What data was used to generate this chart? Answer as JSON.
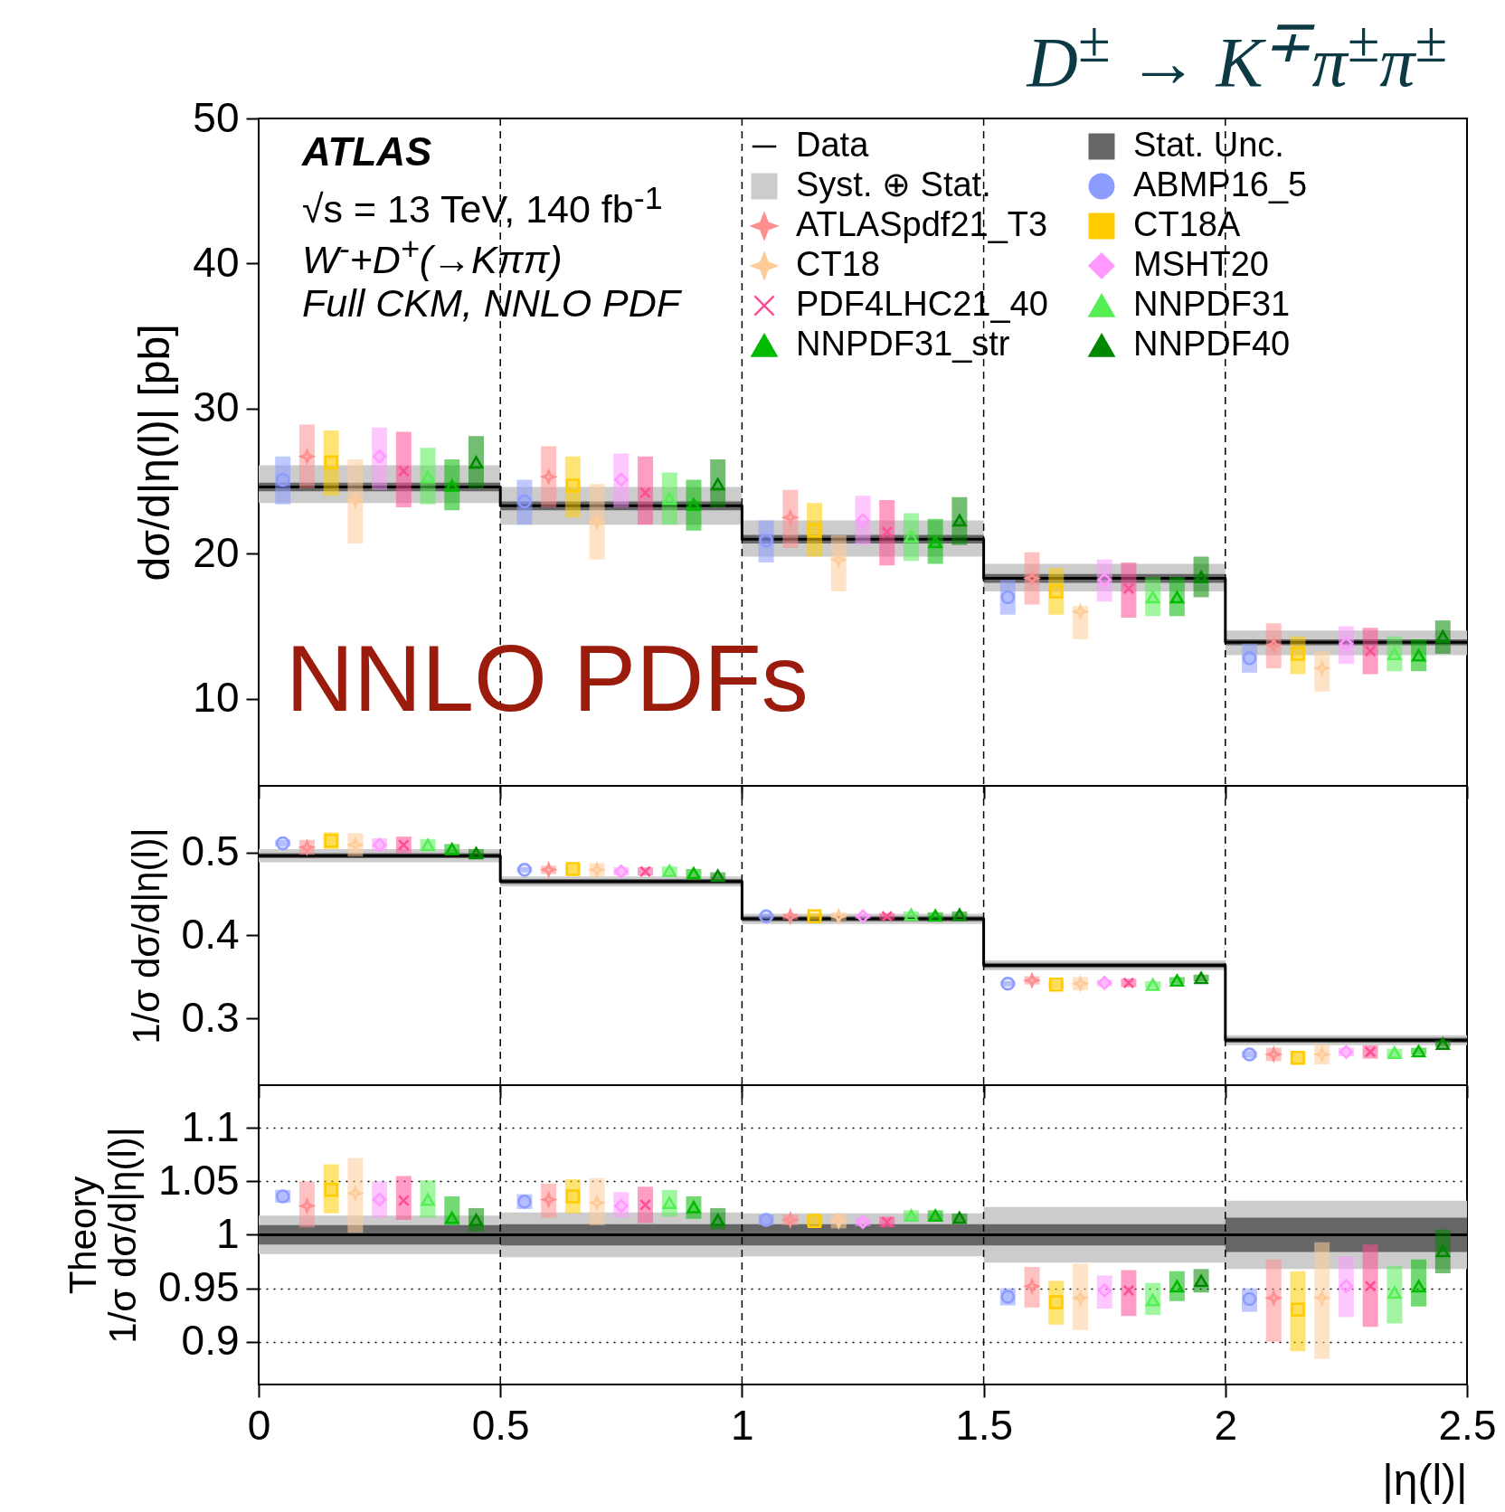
{
  "chart_data": [
    {
      "type": "scatter",
      "title": "D$^{±}$ → K$^{∓}$π$^{±}$π$^{±}$",
      "ylabel": "dσ/d|η(l)| [pb]",
      "xlim": [
        0,
        2.5
      ],
      "xticks": [
        0,
        0.5,
        1,
        1.5,
        2,
        2.5
      ],
      "ylim": [
        4,
        50
      ],
      "yticks": [
        10,
        20,
        30,
        40,
        50
      ],
      "tick_labels": "y",
      "legend": "top right",
      "annotations": [
        "ATLAS",
        "√s = 13 TeV, 140 fb$^{-1}$",
        "W$^{-}$+D$^{+}$(→Kππ)",
        "Full CKM, NNLO PDF",
        "NNLO PDFs"
      ],
      "ref_lines": [
        {
          "axis": "x",
          "value": 0.5,
          "line_style": "dashed"
        },
        {
          "axis": "x",
          "value": 1,
          "line_style": "dashed"
        },
        {
          "axis": "x",
          "value": 1.5,
          "line_style": "dashed"
        },
        {
          "axis": "x",
          "value": 2,
          "line_style": "dashed"
        }
      ],
      "series": [
        {
          "name": "Data",
          "type": "step",
          "color": "#000000",
          "marker": "none",
          "x": [
            0,
            0.5,
            1,
            1.5,
            2,
            2.5
          ],
          "values": [
            24.6,
            23.3,
            21.0,
            18.3,
            13.9,
            13.9
          ]
        },
        {
          "name": "Stat. Unc.",
          "type": "step",
          "color": "#666666",
          "x": [
            0,
            0.5,
            1,
            1.5,
            2,
            2.5
          ],
          "values": [
            null,
            null,
            null,
            null,
            null,
            null
          ],
          "lower": [
            24.3,
            23.0,
            20.7,
            18.0,
            13.7,
            13.7
          ],
          "upper": [
            24.9,
            23.6,
            21.3,
            18.6,
            14.1,
            14.1
          ]
        },
        {
          "name": "Syst. ⊕ Stat.",
          "type": "step",
          "color": "#cccccc",
          "x": [
            0,
            0.5,
            1,
            1.5,
            2,
            2.5
          ],
          "values": [
            null,
            null,
            null,
            null,
            null,
            null
          ],
          "lower": [
            23.5,
            22.0,
            19.8,
            17.4,
            13.0,
            13.0
          ],
          "upper": [
            26.1,
            24.6,
            22.3,
            19.3,
            14.7,
            14.7
          ]
        },
        {
          "name": "ABMP16_5",
          "color": "#8c9cff",
          "marker": "circle",
          "x": [
            0.05,
            0.55,
            1.05,
            1.55,
            2.05
          ],
          "values": [
            25.1,
            23.6,
            20.9,
            17.0,
            12.8
          ],
          "errors": [
            [
              23.4,
              26.7
            ],
            [
              22.0,
              25.1
            ],
            [
              19.4,
              22.3
            ],
            [
              15.8,
              18.2
            ],
            [
              11.8,
              13.8
            ]
          ]
        },
        {
          "name": "ATLASpdf21_T3",
          "color": "#ff8f8f",
          "marker": "star",
          "x": [
            0.1,
            0.6,
            1.1,
            1.6,
            2.1
          ],
          "values": [
            26.7,
            25.3,
            22.5,
            18.3,
            13.7
          ],
          "errors": [
            [
              24.5,
              28.9
            ],
            [
              23.2,
              27.4
            ],
            [
              20.4,
              24.4
            ],
            [
              16.5,
              20.1
            ],
            [
              12.1,
              15.2
            ]
          ]
        },
        {
          "name": "CT18A",
          "color": "#ffcc00",
          "marker": "square",
          "x": [
            0.15,
            0.65,
            1.15,
            1.65,
            2.15
          ],
          "values": [
            26.3,
            24.7,
            21.6,
            17.4,
            13.1
          ],
          "errors": [
            [
              24.0,
              28.5
            ],
            [
              22.5,
              26.7
            ],
            [
              19.8,
              23.5
            ],
            [
              15.8,
              19.0
            ],
            [
              11.7,
              14.3
            ]
          ]
        },
        {
          "name": "CT18",
          "color": "#ffcc99",
          "marker": "star",
          "x": [
            0.2,
            0.7,
            1.2,
            1.7,
            2.2
          ],
          "values": [
            23.7,
            22.2,
            19.6,
            16.0,
            12.1
          ],
          "errors": [
            [
              20.7,
              26.5
            ],
            [
              19.6,
              24.8
            ],
            [
              17.4,
              21.3
            ],
            [
              14.1,
              16.4
            ],
            [
              10.5,
              13.3
            ]
          ]
        },
        {
          "name": "MSHT20",
          "color": "#ff99ff",
          "marker": "diamond",
          "x": [
            0.25,
            0.75,
            1.25,
            1.75,
            2.25
          ],
          "values": [
            26.7,
            25.1,
            22.3,
            18.2,
            13.8
          ],
          "errors": [
            [
              24.4,
              28.7
            ],
            [
              23.2,
              26.9
            ],
            [
              20.6,
              24.0
            ],
            [
              16.7,
              19.6
            ],
            [
              12.4,
              15.0
            ]
          ]
        },
        {
          "name": "PDF4LHC21_40",
          "color": "#ff4d94",
          "marker": "cross",
          "x": [
            0.3,
            0.8,
            1.3,
            1.8,
            2.3
          ],
          "values": [
            25.7,
            24.2,
            21.5,
            17.6,
            13.3
          ],
          "errors": [
            [
              23.2,
              28.4
            ],
            [
              22.0,
              26.7
            ],
            [
              19.2,
              23.7
            ],
            [
              15.6,
              19.4
            ],
            [
              11.7,
              14.9
            ]
          ]
        },
        {
          "name": "NNPDF31",
          "color": "#55ee55",
          "marker": "triangle",
          "x": [
            0.35,
            0.85,
            1.35,
            1.85,
            2.35
          ],
          "values": [
            25.3,
            23.8,
            21.2,
            17.0,
            13.1
          ],
          "errors": [
            [
              23.4,
              27.3
            ],
            [
              22.0,
              25.6
            ],
            [
              19.5,
              22.8
            ],
            [
              15.7,
              18.4
            ],
            [
              11.9,
              14.3
            ]
          ]
        },
        {
          "name": "NNPDF31_str",
          "color": "#00bb00",
          "marker": "triangle",
          "x": [
            0.4,
            0.9,
            1.4,
            1.9,
            2.4
          ],
          "values": [
            24.7,
            23.4,
            20.8,
            17.0,
            13.0
          ],
          "errors": [
            [
              23.0,
              26.5
            ],
            [
              21.6,
              25.1
            ],
            [
              19.3,
              22.4
            ],
            [
              15.7,
              18.4
            ],
            [
              11.9,
              14.1
            ]
          ]
        },
        {
          "name": "NNPDF40",
          "color": "#008800",
          "marker": "triangle",
          "x": [
            0.45,
            0.95,
            1.45,
            1.95,
            2.45
          ],
          "values": [
            26.3,
            24.8,
            22.3,
            18.4,
            14.3
          ],
          "errors": [
            [
              24.5,
              28.1
            ],
            [
              23.2,
              26.5
            ],
            [
              20.6,
              23.9
            ],
            [
              17.0,
              19.8
            ],
            [
              13.1,
              15.4
            ]
          ]
        }
      ]
    },
    {
      "type": "scatter",
      "ylabel": "1/σ dσ/d|η(l)|",
      "xlim": [
        0,
        2.5
      ],
      "xticks": [
        0,
        0.5,
        1,
        1.5,
        2,
        2.5
      ],
      "ylim": [
        0.22,
        0.58
      ],
      "yticks": [
        0.3,
        0.4,
        0.5
      ],
      "tick_labels": "y",
      "ref_lines": [
        {
          "axis": "x",
          "value": 0.5,
          "line_style": "dashed"
        },
        {
          "axis": "x",
          "value": 1,
          "line_style": "dashed"
        },
        {
          "axis": "x",
          "value": 1.5,
          "line_style": "dashed"
        },
        {
          "axis": "x",
          "value": 2,
          "line_style": "dashed"
        }
      ],
      "series": [
        {
          "type": "step",
          "color": "#000000",
          "marker": "none",
          "x": [
            0,
            0.5,
            1,
            1.5,
            2,
            2.5
          ],
          "values": [
            0.496,
            0.465,
            0.42,
            0.364,
            0.274,
            0.274
          ]
        },
        {
          "type": "step",
          "color": "#666666",
          "x": [
            0,
            0.5,
            1,
            1.5,
            2,
            2.5
          ],
          "values": [
            null,
            null,
            null,
            null,
            null,
            null
          ],
          "lower": [
            0.493,
            0.462,
            0.417,
            0.361,
            0.271,
            0.271
          ],
          "upper": [
            0.499,
            0.468,
            0.423,
            0.367,
            0.277,
            0.277
          ]
        },
        {
          "type": "step",
          "color": "#cccccc",
          "x": [
            0,
            0.5,
            1,
            1.5,
            2,
            2.5
          ],
          "values": [
            null,
            null,
            null,
            null,
            null,
            null
          ],
          "lower": [
            0.488,
            0.459,
            0.414,
            0.358,
            0.268,
            0.268
          ],
          "upper": [
            0.504,
            0.471,
            0.426,
            0.37,
            0.28,
            0.28
          ]
        },
        {
          "color": "#8c9cff",
          "marker": "circle",
          "x": [
            0.05,
            0.55,
            1.05,
            1.55,
            2.05
          ],
          "values": [
            0.511,
            0.479,
            0.423,
            0.342,
            0.257
          ],
          "errors": [
            [
              0.507,
              0.515
            ],
            [
              0.476,
              0.482
            ],
            [
              0.42,
              0.426
            ],
            [
              0.339,
              0.345
            ],
            [
              0.253,
              0.261
            ]
          ]
        },
        {
          "color": "#ff8f8f",
          "marker": "star",
          "x": [
            0.1,
            0.6,
            1.1,
            1.6,
            2.1
          ],
          "values": [
            0.506,
            0.479,
            0.423,
            0.346,
            0.257
          ],
          "errors": [
            [
              0.497,
              0.515
            ],
            [
              0.474,
              0.484
            ],
            [
              0.419,
              0.427
            ],
            [
              0.341,
              0.351
            ],
            [
              0.249,
              0.265
            ]
          ]
        },
        {
          "color": "#ffcc00",
          "marker": "square",
          "x": [
            0.15,
            0.65,
            1.15,
            1.65,
            2.15
          ],
          "values": [
            0.514,
            0.48,
            0.423,
            0.341,
            0.253
          ],
          "errors": [
            [
              0.504,
              0.524
            ],
            [
              0.474,
              0.486
            ],
            [
              0.419,
              0.427
            ],
            [
              0.336,
              0.346
            ],
            [
              0.245,
              0.261
            ]
          ]
        },
        {
          "color": "#ffcc99",
          "marker": "star",
          "x": [
            0.2,
            0.7,
            1.2,
            1.7,
            2.2
          ],
          "values": [
            0.509,
            0.479,
            0.423,
            0.342,
            0.257
          ],
          "errors": [
            [
              0.495,
              0.523
            ],
            [
              0.471,
              0.487
            ],
            [
              0.418,
              0.428
            ],
            [
              0.334,
              0.35
            ],
            [
              0.245,
              0.269
            ]
          ]
        },
        {
          "color": "#ff99ff",
          "marker": "diamond",
          "x": [
            0.25,
            0.75,
            1.25,
            1.75,
            2.25
          ],
          "values": [
            0.509,
            0.477,
            0.423,
            0.343,
            0.26
          ],
          "errors": [
            [
              0.501,
              0.517
            ],
            [
              0.472,
              0.482
            ],
            [
              0.42,
              0.426
            ],
            [
              0.339,
              0.347
            ],
            [
              0.255,
              0.265
            ]
          ]
        },
        {
          "color": "#ff4d94",
          "marker": "cross",
          "x": [
            0.3,
            0.8,
            1.3,
            1.8,
            2.3
          ],
          "values": [
            0.509,
            0.477,
            0.423,
            0.343,
            0.26
          ],
          "errors": [
            [
              0.499,
              0.519
            ],
            [
              0.472,
              0.482
            ],
            [
              0.419,
              0.427
            ],
            [
              0.338,
              0.348
            ],
            [
              0.252,
              0.268
            ]
          ]
        },
        {
          "color": "#55ee55",
          "marker": "triangle",
          "x": [
            0.35,
            0.85,
            1.35,
            1.85,
            2.35
          ],
          "values": [
            0.509,
            0.478,
            0.425,
            0.341,
            0.259
          ],
          "errors": [
            [
              0.502,
              0.516
            ],
            [
              0.473,
              0.483
            ],
            [
              0.421,
              0.429
            ],
            [
              0.337,
              0.345
            ],
            [
              0.254,
              0.264
            ]
          ]
        },
        {
          "color": "#00bb00",
          "marker": "triangle",
          "x": [
            0.4,
            0.9,
            1.4,
            1.9,
            2.4
          ],
          "values": [
            0.504,
            0.475,
            0.424,
            0.346,
            0.261
          ],
          "errors": [
            [
              0.498,
              0.51
            ],
            [
              0.47,
              0.48
            ],
            [
              0.42,
              0.428
            ],
            [
              0.342,
              0.35
            ],
            [
              0.257,
              0.265
            ]
          ]
        },
        {
          "color": "#008800",
          "marker": "triangle",
          "x": [
            0.45,
            0.95,
            1.45,
            1.95,
            2.45
          ],
          "values": [
            0.499,
            0.472,
            0.425,
            0.349,
            0.27
          ],
          "errors": [
            [
              0.494,
              0.504
            ],
            [
              0.468,
              0.476
            ],
            [
              0.421,
              0.429
            ],
            [
              0.345,
              0.353
            ],
            [
              0.266,
              0.274
            ]
          ]
        }
      ]
    },
    {
      "type": "scatter",
      "ylabel": "Theory\n1/σ dσ/d|η(l)|",
      "xlabel": "|η(l)|",
      "xlim": [
        0,
        2.5
      ],
      "xticks": [
        0,
        0.5,
        1,
        1.5,
        2,
        2.5
      ],
      "ylim": [
        0.86,
        1.14
      ],
      "yticks": [
        0.9,
        0.95,
        1,
        1.05,
        1.1
      ],
      "grid": "y",
      "ref_lines": [
        {
          "axis": "x",
          "value": 0.5,
          "line_style": "dashed"
        },
        {
          "axis": "x",
          "value": 1,
          "line_style": "dashed"
        },
        {
          "axis": "x",
          "value": 1.5,
          "line_style": "dashed"
        },
        {
          "axis": "x",
          "value": 2,
          "line_style": "dashed"
        }
      ],
      "series": [
        {
          "type": "step",
          "color": "#000000",
          "marker": "none",
          "x": [
            0,
            0.5,
            1,
            1.5,
            2,
            2.5
          ],
          "values": [
            1,
            1,
            1,
            1,
            1,
            1
          ]
        },
        {
          "type": "step",
          "color": "#666666",
          "x": [
            0,
            0.5,
            1,
            1.5,
            2,
            2.5
          ],
          "values": [
            null,
            null,
            null,
            null,
            null,
            null
          ],
          "lower": [
            0.991,
            0.99,
            0.99,
            0.99,
            0.984,
            0.984
          ],
          "upper": [
            1.009,
            1.01,
            1.01,
            1.01,
            1.016,
            1.016
          ]
        },
        {
          "type": "step",
          "color": "#cccccc",
          "x": [
            0,
            0.5,
            1,
            1.5,
            2,
            2.5
          ],
          "values": [
            null,
            null,
            null,
            null,
            null,
            null
          ],
          "lower": [
            0.982,
            0.979,
            0.98,
            0.974,
            0.968,
            0.968
          ],
          "upper": [
            1.018,
            1.021,
            1.02,
            1.026,
            1.032,
            1.032
          ]
        },
        {
          "color": "#8c9cff",
          "marker": "circle",
          "x": [
            0.05,
            0.55,
            1.05,
            1.55,
            2.05
          ],
          "values": [
            1.036,
            1.031,
            1.014,
            0.942,
            0.94
          ],
          "errors": [
            [
              1.03,
              1.042
            ],
            [
              1.024,
              1.038
            ],
            [
              1.009,
              1.019
            ],
            [
              0.934,
              0.95
            ],
            [
              0.928,
              0.95
            ]
          ]
        },
        {
          "color": "#ff8f8f",
          "marker": "star",
          "x": [
            0.1,
            0.6,
            1.1,
            1.6,
            2.1
          ],
          "values": [
            1.027,
            1.033,
            1.014,
            0.952,
            0.941
          ],
          "errors": [
            [
              1.007,
              1.05
            ],
            [
              1.016,
              1.048
            ],
            [
              1.009,
              1.019
            ],
            [
              0.932,
              0.97
            ],
            [
              0.9,
              0.977
            ]
          ]
        },
        {
          "color": "#ffcc00",
          "marker": "square",
          "x": [
            0.15,
            0.65,
            1.15,
            1.65,
            2.15
          ],
          "values": [
            1.042,
            1.036,
            1.013,
            0.937,
            0.93
          ],
          "errors": [
            [
              1.02,
              1.066
            ],
            [
              1.02,
              1.052
            ],
            [
              1.008,
              1.018
            ],
            [
              0.916,
              0.957
            ],
            [
              0.891,
              0.966
            ]
          ]
        },
        {
          "color": "#ffcc99",
          "marker": "star",
          "x": [
            0.2,
            0.7,
            1.2,
            1.7,
            2.2
          ],
          "values": [
            1.039,
            1.03,
            1.013,
            0.941,
            0.941
          ],
          "errors": [
            [
              1.002,
              1.072
            ],
            [
              1.009,
              1.053
            ],
            [
              1.006,
              1.02
            ],
            [
              0.911,
              0.973
            ],
            [
              0.884,
              0.993
            ]
          ]
        },
        {
          "color": "#ff99ff",
          "marker": "diamond",
          "x": [
            0.25,
            0.75,
            1.25,
            1.75,
            2.25
          ],
          "values": [
            1.033,
            1.027,
            1.012,
            0.948,
            0.952
          ],
          "errors": [
            [
              1.016,
              1.05
            ],
            [
              1.016,
              1.04
            ],
            [
              1.008,
              1.016
            ],
            [
              0.931,
              0.962
            ],
            [
              0.923,
              0.98
            ]
          ]
        },
        {
          "color": "#ff4d94",
          "marker": "cross",
          "x": [
            0.3,
            0.8,
            1.3,
            1.8,
            2.3
          ],
          "values": [
            1.032,
            1.028,
            1.012,
            0.948,
            0.952
          ],
          "errors": [
            [
              1.014,
              1.055
            ],
            [
              1.011,
              1.045
            ],
            [
              1.007,
              1.017
            ],
            [
              0.924,
              0.967
            ],
            [
              0.914,
              0.991
            ]
          ]
        },
        {
          "color": "#55ee55",
          "marker": "triangle",
          "x": [
            0.35,
            0.85,
            1.35,
            1.85,
            2.35
          ],
          "values": [
            1.033,
            1.03,
            1.018,
            0.939,
            0.946
          ],
          "errors": [
            [
              1.016,
              1.051
            ],
            [
              1.017,
              1.042
            ],
            [
              1.013,
              1.023
            ],
            [
              0.925,
              0.955
            ],
            [
              0.917,
              0.971
            ]
          ]
        },
        {
          "color": "#00bb00",
          "marker": "triangle",
          "x": [
            0.4,
            0.9,
            1.4,
            1.9,
            2.4
          ],
          "values": [
            1.016,
            1.026,
            1.018,
            0.952,
            0.952
          ],
          "errors": [
            [
              1.009,
              1.036
            ],
            [
              1.015,
              1.036
            ],
            [
              1.013,
              1.023
            ],
            [
              0.938,
              0.966
            ],
            [
              0.933,
              0.977
            ]
          ]
        },
        {
          "color": "#008800",
          "marker": "triangle",
          "x": [
            0.45,
            0.95,
            1.45,
            1.95,
            2.45
          ],
          "values": [
            1.014,
            1.014,
            1.016,
            0.957,
            0.985
          ],
          "errors": [
            [
              1.003,
              1.025
            ],
            [
              1.005,
              1.025
            ],
            [
              1.012,
              1.02
            ],
            [
              0.946,
              0.968
            ],
            [
              0.964,
              1.005
            ]
          ]
        }
      ]
    }
  ]
}
